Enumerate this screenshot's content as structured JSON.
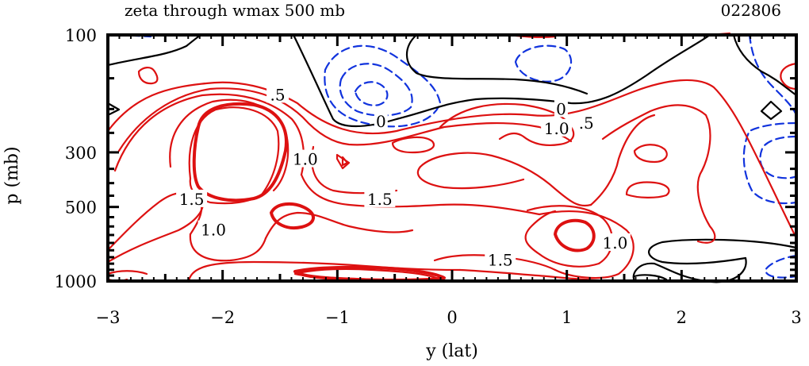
{
  "chart_data": {
    "type": "contour",
    "title": "zeta through wmax 500 mb",
    "run_id": "022806",
    "xlabel": "y (lat)",
    "ylabel": "p (mb)",
    "xlim": [
      -3,
      3
    ],
    "ylim": [
      100,
      1000
    ],
    "y_scale": "log",
    "y_inverted": true,
    "x_ticks": [
      {
        "value": -3,
        "label": "−3"
      },
      {
        "value": -2,
        "label": "−2"
      },
      {
        "value": -1,
        "label": "−1"
      },
      {
        "value": 0,
        "label": "0"
      },
      {
        "value": 1,
        "label": "1"
      },
      {
        "value": 2,
        "label": "2"
      },
      {
        "value": 3,
        "label": "3"
      }
    ],
    "y_ticks": [
      {
        "value": 100,
        "label": "100"
      },
      {
        "value": 300,
        "label": "300"
      },
      {
        "value": 500,
        "label": "500"
      },
      {
        "value": 1000,
        "label": "1000"
      }
    ],
    "contour_levels": {
      "positive": {
        "color": "#dd1111",
        "style": "solid",
        "levels": [
          0.5,
          1.0,
          1.5,
          2.0
        ]
      },
      "zero": {
        "color": "#000000",
        "style": "solid",
        "levels": [
          0
        ]
      },
      "negative": {
        "color": "#1133dd",
        "style": "dashed",
        "levels": [
          -0.5,
          -1.0,
          -1.5
        ]
      }
    },
    "contour_labels": [
      {
        "text": ".5",
        "x": -1.52,
        "p": 175
      },
      {
        "text": "0",
        "x": 0.95,
        "p": 200
      },
      {
        "text": "0",
        "x": -0.62,
        "p": 225
      },
      {
        "text": "1.0",
        "x": 0.91,
        "p": 240
      },
      {
        "text": ".5",
        "x": 1.17,
        "p": 228
      },
      {
        "text": "1.0",
        "x": -1.28,
        "p": 320
      },
      {
        "text": "1.5",
        "x": -0.63,
        "p": 465
      },
      {
        "text": "1.5",
        "x": -2.27,
        "p": 465
      },
      {
        "text": "1.0",
        "x": -2.08,
        "p": 620
      },
      {
        "text": "1.5",
        "x": 0.42,
        "p": 820
      },
      {
        "text": "1.0",
        "x": 1.42,
        "p": 700
      }
    ]
  }
}
